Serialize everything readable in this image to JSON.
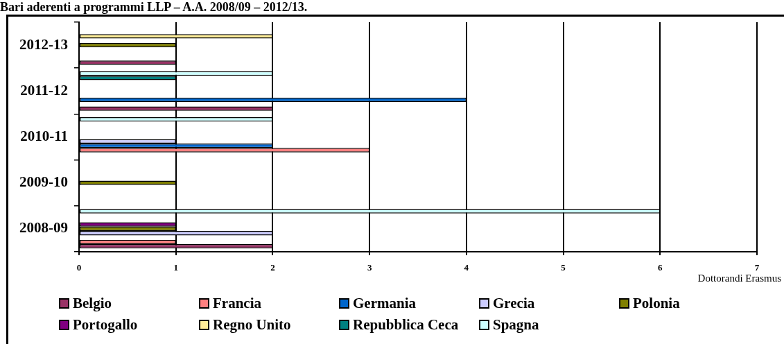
{
  "chart_data": {
    "type": "bar",
    "orientation": "horizontal",
    "title": "Bari aderenti a programmi LLP – A.A. 2008/09 – 2012/13.",
    "xlabel": "Dottorandi Erasmus",
    "categories": [
      "2012-13",
      "2011-12",
      "2010-11",
      "2009-10",
      "2008-09"
    ],
    "series": [
      {
        "name": "Belgio",
        "color": "#993366",
        "values": [
          1,
          2,
          null,
          null,
          2
        ]
      },
      {
        "name": "Francia",
        "color": "#ff8080",
        "values": [
          null,
          null,
          3,
          null,
          1
        ]
      },
      {
        "name": "Germania",
        "color": "#0066cc",
        "values": [
          null,
          4,
          2,
          null,
          null
        ]
      },
      {
        "name": "Grecia",
        "color": "#ccccff",
        "values": [
          null,
          null,
          1,
          null,
          2
        ]
      },
      {
        "name": "Polonia",
        "color": "#808000",
        "values": [
          1,
          null,
          null,
          1,
          1
        ]
      },
      {
        "name": "Portogallo",
        "color": "#800080",
        "values": [
          null,
          null,
          null,
          null,
          1
        ]
      },
      {
        "name": "Regno Unito",
        "color": "#ffee99",
        "values": [
          2,
          null,
          null,
          null,
          null
        ]
      },
      {
        "name": "Repubblica Ceca",
        "color": "#008080",
        "values": [
          null,
          1,
          null,
          null,
          null
        ]
      },
      {
        "name": "Spagna",
        "color": "#ccffff",
        "values": [
          null,
          2,
          2,
          null,
          6
        ]
      }
    ],
    "xlim": [
      0,
      7
    ],
    "xticks": [
      0,
      1,
      2,
      3,
      4,
      5,
      6,
      7
    ],
    "grid": "x",
    "legend": "bottom"
  }
}
